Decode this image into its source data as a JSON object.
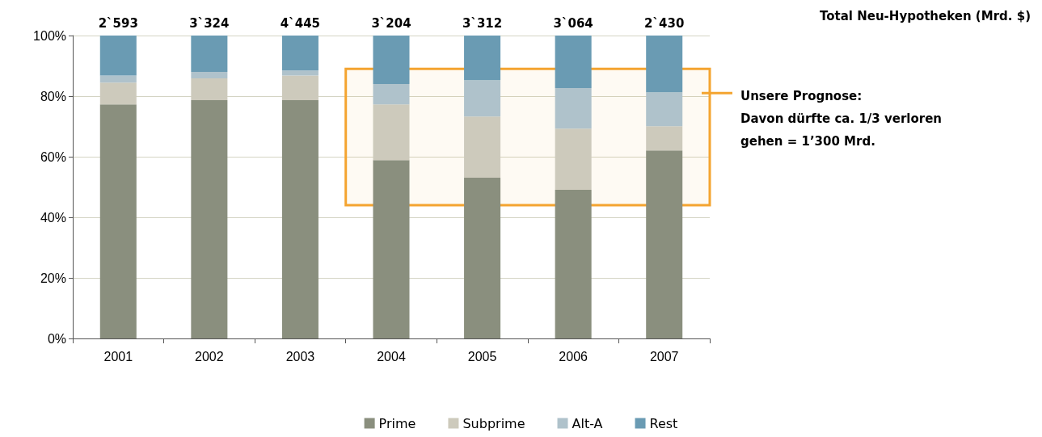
{
  "chart_data": {
    "type": "bar",
    "stacked": true,
    "categories": [
      "2001",
      "2002",
      "2003",
      "2004",
      "2005",
      "2006",
      "2007"
    ],
    "series": [
      {
        "name": "Prime",
        "color": "#8a8f7e",
        "values": [
          77.3,
          78.7,
          78.7,
          58.9,
          53.1,
          49.1,
          62.1
        ]
      },
      {
        "name": "Subprime",
        "color": "#cdcabc",
        "values": [
          7.2,
          7.2,
          8.1,
          18.4,
          20.2,
          20.2,
          8.0
        ]
      },
      {
        "name": "Alt-A",
        "color": "#afc2cb",
        "values": [
          2.3,
          2.1,
          1.7,
          6.7,
          12.0,
          13.4,
          11.2
        ]
      },
      {
        "name": "Rest",
        "color": "#6a9bb3",
        "values": [
          13.2,
          12.0,
          11.5,
          16.0,
          14.7,
          17.3,
          18.7
        ]
      }
    ],
    "ylim": [
      0,
      100
    ],
    "yticks": [
      {
        "value": 0,
        "label": "0%"
      },
      {
        "value": 20,
        "label": "20%"
      },
      {
        "value": 40,
        "label": "40%"
      },
      {
        "value": 60,
        "label": "60%"
      },
      {
        "value": 80,
        "label": "80%"
      },
      {
        "value": 100,
        "label": "100%"
      }
    ],
    "grid": "y",
    "legend": "bottom",
    "bands": [
      {
        "axis": "y",
        "from": 44,
        "to": 89,
        "color": "#f4a430",
        "label": "Unsere Prognose:\nDavon dürfte ca. 1/3 verloren\ngehen = 1’300 Mrd."
      }
    ],
    "annotations": [
      {
        "text": "2`593",
        "x": "2001",
        "y": 100
      },
      {
        "text": "3`324",
        "x": "2002",
        "y": 100
      },
      {
        "text": "4`445",
        "x": "2003",
        "y": 100
      },
      {
        "text": "3`204",
        "x": "2004",
        "y": 100
      },
      {
        "text": "3`312",
        "x": "2005",
        "y": 100
      },
      {
        "text": "3`064",
        "x": "2006",
        "y": 100
      },
      {
        "text": "2`430",
        "x": "2007",
        "y": 100
      },
      "Total Neu-Hypotheken (Mrd. $)"
    ]
  }
}
